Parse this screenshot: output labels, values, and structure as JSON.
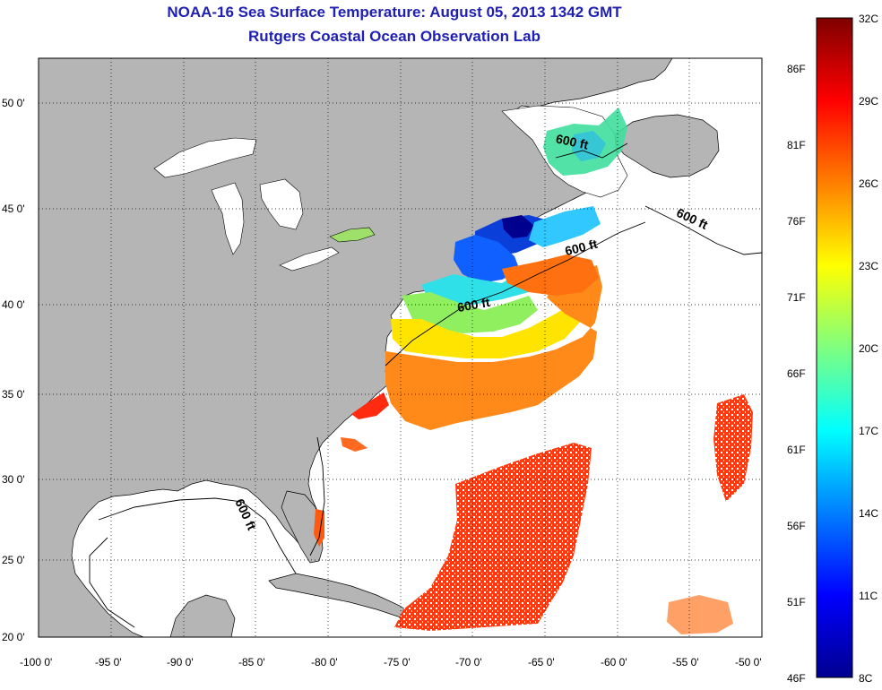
{
  "title": {
    "line1": "NOAA-16 Sea Surface Temperature:  August 05, 2013 1342 GMT",
    "line2": "Rutgers Coastal Ocean Observation Lab"
  },
  "axes": {
    "lat_labels": [
      "50 0'",
      "45 0'",
      "40 0'",
      "35 0'",
      "30 0'",
      "25 0'",
      "20 0'"
    ],
    "lon_labels": [
      "-100 0'",
      "-95 0'",
      "-90 0'",
      "-85 0'",
      "-80 0'",
      "-75 0'",
      "-70 0'",
      "-65 0'",
      "-60 0'",
      "-55 0'",
      "-50 0'"
    ],
    "grid": "dotted"
  },
  "colorbar": {
    "celsius": [
      "32C",
      "29C",
      "26C",
      "23C",
      "20C",
      "17C",
      "14C",
      "11C",
      "8C"
    ],
    "fahrenheit": [
      "86F",
      "81F",
      "76F",
      "71F",
      "66F",
      "61F",
      "56F",
      "51F",
      "46F"
    ],
    "colors": [
      "#7f0000",
      "#ff0000",
      "#ff7f00",
      "#ffff00",
      "#7fff7f",
      "#00ffff",
      "#007fff",
      "#0000ff",
      "#00008f"
    ]
  },
  "contours": {
    "label": "600 ft",
    "labels": [
      "600 ft",
      "600 ft",
      "600 ft",
      "600 ft",
      "600 ft"
    ]
  },
  "colors": {
    "land": "#b5b5b5",
    "ocean": "#ffffff",
    "title": "#1f1fb4"
  }
}
